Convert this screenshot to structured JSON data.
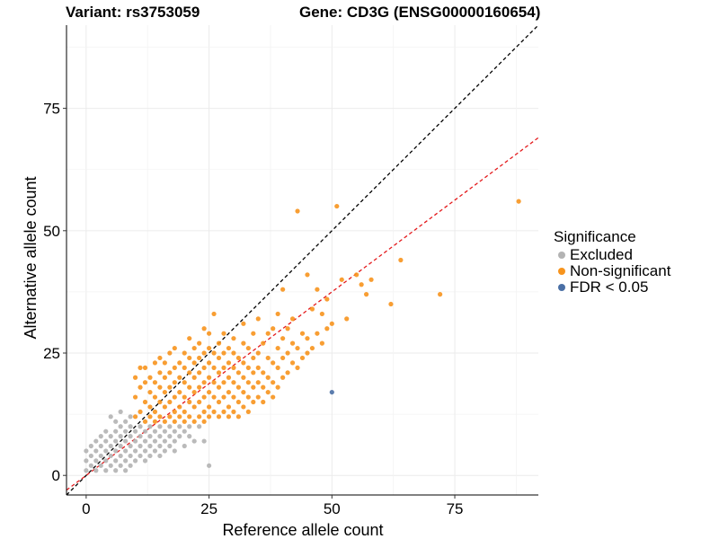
{
  "header": {
    "variant_title": "Variant: rs3753059",
    "gene_title": "Gene: CD3G (ENSG00000160654)"
  },
  "legend": {
    "title": "Significance",
    "items": [
      {
        "label": "Excluded",
        "color": "#b3b3b3"
      },
      {
        "label": "Non-significant",
        "color": "#f7941d"
      },
      {
        "label": "FDR < 0.05",
        "color": "#4a6fa5"
      }
    ]
  },
  "chart_data": {
    "type": "scatter",
    "xlabel": "Reference allele count",
    "ylabel": "Alternative allele count",
    "xlim": [
      -4,
      92
    ],
    "ylim": [
      -4,
      92
    ],
    "xticks": [
      0,
      25,
      50,
      75
    ],
    "yticks": [
      0,
      25,
      50,
      75
    ],
    "grid": true,
    "legend_position": "right",
    "reference_lines": [
      {
        "name": "identity",
        "slope": 1.0,
        "intercept": 0,
        "color": "#000000",
        "style": "dashed"
      },
      {
        "name": "fit",
        "slope": 0.75,
        "intercept": 0,
        "color": "#e41a1c",
        "style": "dashed"
      }
    ],
    "series": [
      {
        "name": "Excluded",
        "color": "#b3b3b3",
        "points": [
          [
            0,
            1
          ],
          [
            0,
            3
          ],
          [
            0,
            5
          ],
          [
            1,
            2
          ],
          [
            1,
            4
          ],
          [
            1,
            6
          ],
          [
            2,
            1
          ],
          [
            2,
            3
          ],
          [
            2,
            5
          ],
          [
            2,
            7
          ],
          [
            3,
            2
          ],
          [
            3,
            4
          ],
          [
            3,
            6
          ],
          [
            3,
            8
          ],
          [
            4,
            1
          ],
          [
            4,
            3
          ],
          [
            4,
            5
          ],
          [
            4,
            7
          ],
          [
            4,
            9
          ],
          [
            5,
            2
          ],
          [
            5,
            4
          ],
          [
            5,
            6
          ],
          [
            5,
            8
          ],
          [
            6,
            1
          ],
          [
            6,
            3
          ],
          [
            6,
            5
          ],
          [
            6,
            7
          ],
          [
            6,
            9
          ],
          [
            7,
            2
          ],
          [
            7,
            4
          ],
          [
            7,
            6
          ],
          [
            7,
            8
          ],
          [
            7,
            10
          ],
          [
            8,
            1
          ],
          [
            8,
            3
          ],
          [
            8,
            5
          ],
          [
            8,
            7
          ],
          [
            8,
            9
          ],
          [
            9,
            2
          ],
          [
            9,
            4
          ],
          [
            9,
            6
          ],
          [
            9,
            8
          ],
          [
            9,
            10
          ],
          [
            10,
            3
          ],
          [
            10,
            5
          ],
          [
            10,
            7
          ],
          [
            10,
            9
          ],
          [
            11,
            4
          ],
          [
            11,
            6
          ],
          [
            11,
            8
          ],
          [
            11,
            10
          ],
          [
            12,
            3
          ],
          [
            12,
            5
          ],
          [
            12,
            7
          ],
          [
            12,
            9
          ],
          [
            13,
            4
          ],
          [
            13,
            6
          ],
          [
            13,
            8
          ],
          [
            13,
            10
          ],
          [
            14,
            5
          ],
          [
            14,
            7
          ],
          [
            14,
            9
          ],
          [
            15,
            4
          ],
          [
            15,
            6
          ],
          [
            15,
            8
          ],
          [
            15,
            10
          ],
          [
            16,
            5
          ],
          [
            16,
            7
          ],
          [
            16,
            9
          ],
          [
            17,
            6
          ],
          [
            17,
            8
          ],
          [
            17,
            10
          ],
          [
            18,
            5
          ],
          [
            18,
            7
          ],
          [
            18,
            9
          ],
          [
            19,
            8
          ],
          [
            19,
            10
          ],
          [
            20,
            6
          ],
          [
            20,
            9
          ],
          [
            21,
            8
          ],
          [
            21,
            10
          ],
          [
            22,
            7
          ],
          [
            23,
            10
          ],
          [
            24,
            7
          ],
          [
            25,
            2
          ],
          [
            5,
            12
          ],
          [
            6,
            11
          ],
          [
            7,
            13
          ],
          [
            8,
            11
          ],
          [
            9,
            12
          ]
        ]
      },
      {
        "name": "Non-significant",
        "color": "#f7941d",
        "points": [
          [
            10,
            12
          ],
          [
            10,
            16
          ],
          [
            10,
            20
          ],
          [
            11,
            13
          ],
          [
            11,
            18
          ],
          [
            11,
            22
          ],
          [
            12,
            11
          ],
          [
            12,
            15
          ],
          [
            12,
            19
          ],
          [
            12,
            22
          ],
          [
            13,
            12
          ],
          [
            13,
            14
          ],
          [
            13,
            17
          ],
          [
            13,
            20
          ],
          [
            14,
            11
          ],
          [
            14,
            13
          ],
          [
            14,
            16
          ],
          [
            14,
            19
          ],
          [
            14,
            23
          ],
          [
            15,
            12
          ],
          [
            15,
            15
          ],
          [
            15,
            18
          ],
          [
            15,
            21
          ],
          [
            15,
            24
          ],
          [
            16,
            11
          ],
          [
            16,
            14
          ],
          [
            16,
            17
          ],
          [
            16,
            20
          ],
          [
            16,
            23
          ],
          [
            17,
            12
          ],
          [
            17,
            15
          ],
          [
            17,
            18
          ],
          [
            17,
            21
          ],
          [
            17,
            25
          ],
          [
            18,
            11
          ],
          [
            18,
            13
          ],
          [
            18,
            16
          ],
          [
            18,
            19
          ],
          [
            18,
            22
          ],
          [
            18,
            26
          ],
          [
            19,
            12
          ],
          [
            19,
            14
          ],
          [
            19,
            17
          ],
          [
            19,
            20
          ],
          [
            19,
            23
          ],
          [
            20,
            11
          ],
          [
            20,
            13
          ],
          [
            20,
            16
          ],
          [
            20,
            19
          ],
          [
            20,
            22
          ],
          [
            20,
            25
          ],
          [
            21,
            12
          ],
          [
            21,
            15
          ],
          [
            21,
            18
          ],
          [
            21,
            21
          ],
          [
            21,
            24
          ],
          [
            21,
            28
          ],
          [
            22,
            11
          ],
          [
            22,
            14
          ],
          [
            22,
            17
          ],
          [
            22,
            20
          ],
          [
            22,
            23
          ],
          [
            22,
            26
          ],
          [
            23,
            12
          ],
          [
            23,
            15
          ],
          [
            23,
            18
          ],
          [
            23,
            21
          ],
          [
            23,
            24
          ],
          [
            23,
            27
          ],
          [
            24,
            11
          ],
          [
            24,
            13
          ],
          [
            24,
            16
          ],
          [
            24,
            19
          ],
          [
            24,
            22
          ],
          [
            24,
            25
          ],
          [
            24,
            30
          ],
          [
            25,
            12
          ],
          [
            25,
            14
          ],
          [
            25,
            17
          ],
          [
            25,
            20
          ],
          [
            25,
            23
          ],
          [
            25,
            26
          ],
          [
            25,
            29
          ],
          [
            26,
            13
          ],
          [
            26,
            16
          ],
          [
            26,
            19
          ],
          [
            26,
            22
          ],
          [
            26,
            25
          ],
          [
            26,
            33
          ],
          [
            27,
            12
          ],
          [
            27,
            15
          ],
          [
            27,
            18
          ],
          [
            27,
            21
          ],
          [
            27,
            24
          ],
          [
            27,
            27
          ],
          [
            28,
            13
          ],
          [
            28,
            16
          ],
          [
            28,
            19
          ],
          [
            28,
            22
          ],
          [
            28,
            25
          ],
          [
            28,
            29
          ],
          [
            29,
            12
          ],
          [
            29,
            14
          ],
          [
            29,
            17
          ],
          [
            29,
            20
          ],
          [
            29,
            23
          ],
          [
            29,
            26
          ],
          [
            30,
            13
          ],
          [
            30,
            16
          ],
          [
            30,
            19
          ],
          [
            30,
            22
          ],
          [
            30,
            25
          ],
          [
            30,
            28
          ],
          [
            31,
            12
          ],
          [
            31,
            15
          ],
          [
            31,
            18
          ],
          [
            31,
            21
          ],
          [
            31,
            24
          ],
          [
            32,
            14
          ],
          [
            32,
            17
          ],
          [
            32,
            20
          ],
          [
            32,
            23
          ],
          [
            32,
            27
          ],
          [
            32,
            31
          ],
          [
            33,
            13
          ],
          [
            33,
            16
          ],
          [
            33,
            19
          ],
          [
            33,
            22
          ],
          [
            33,
            26
          ],
          [
            34,
            15
          ],
          [
            34,
            18
          ],
          [
            34,
            21
          ],
          [
            34,
            24
          ],
          [
            34,
            29
          ],
          [
            35,
            16
          ],
          [
            35,
            19
          ],
          [
            35,
            22
          ],
          [
            35,
            25
          ],
          [
            35,
            32
          ],
          [
            36,
            15
          ],
          [
            36,
            18
          ],
          [
            36,
            21
          ],
          [
            36,
            27
          ],
          [
            37,
            17
          ],
          [
            37,
            20
          ],
          [
            37,
            24
          ],
          [
            37,
            29
          ],
          [
            38,
            16
          ],
          [
            38,
            19
          ],
          [
            38,
            23
          ],
          [
            38,
            30
          ],
          [
            39,
            18
          ],
          [
            39,
            22
          ],
          [
            39,
            26
          ],
          [
            39,
            33
          ],
          [
            40,
            20
          ],
          [
            40,
            24
          ],
          [
            40,
            28
          ],
          [
            40,
            38
          ],
          [
            41,
            21
          ],
          [
            41,
            25
          ],
          [
            41,
            30
          ],
          [
            42,
            23
          ],
          [
            42,
            27
          ],
          [
            42,
            32
          ],
          [
            43,
            22
          ],
          [
            43,
            26
          ],
          [
            43,
            54
          ],
          [
            44,
            24
          ],
          [
            44,
            29
          ],
          [
            45,
            25
          ],
          [
            45,
            28
          ],
          [
            45,
            41
          ],
          [
            46,
            26
          ],
          [
            46,
            34
          ],
          [
            47,
            29
          ],
          [
            47,
            38
          ],
          [
            48,
            27
          ],
          [
            48,
            33
          ],
          [
            49,
            30
          ],
          [
            49,
            36
          ],
          [
            50,
            31
          ],
          [
            51,
            55
          ],
          [
            52,
            40
          ],
          [
            53,
            32
          ],
          [
            55,
            41
          ],
          [
            56,
            39
          ],
          [
            57,
            37
          ],
          [
            58,
            40
          ],
          [
            62,
            35
          ],
          [
            64,
            44
          ],
          [
            72,
            37
          ],
          [
            88,
            56
          ]
        ]
      },
      {
        "name": "FDR < 0.05",
        "color": "#4a6fa5",
        "points": [
          [
            50,
            17
          ]
        ]
      }
    ]
  }
}
